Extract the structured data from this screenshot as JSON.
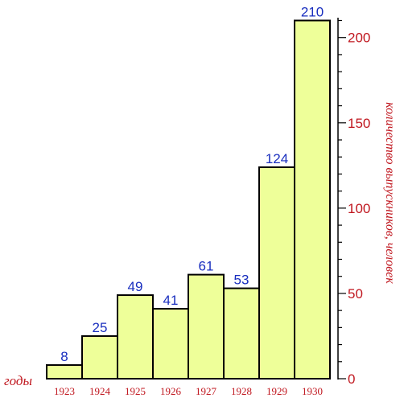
{
  "chart_data": {
    "type": "bar",
    "categories": [
      "1923",
      "1924",
      "1925",
      "1926",
      "1927",
      "1928",
      "1929",
      "1930"
    ],
    "values": [
      8,
      25,
      49,
      41,
      61,
      53,
      124,
      210
    ],
    "xlabel": "годы",
    "ylabel": "количество выпускников, человек",
    "ylim": [
      0,
      215
    ],
    "yticks": [
      0,
      50,
      100,
      150,
      200
    ],
    "y_axis_side": "right",
    "grid": false,
    "bar_fill": "#eeff99",
    "bar_stroke": "#000000",
    "value_label_color": "#1a2fbf",
    "axis_text_color": "#c0171f",
    "axis_line_color": "#000000"
  }
}
